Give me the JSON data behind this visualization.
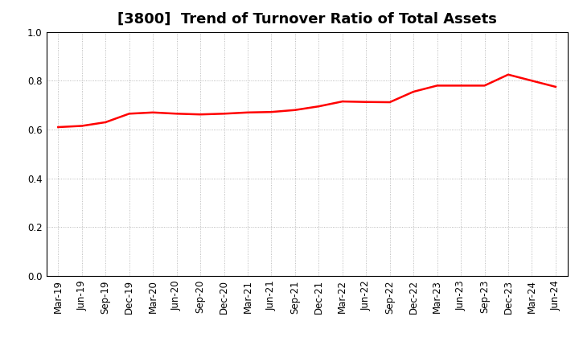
{
  "title": "[3800]  Trend of Turnover Ratio of Total Assets",
  "x_labels": [
    "Mar-19",
    "Jun-19",
    "Sep-19",
    "Dec-19",
    "Mar-20",
    "Jun-20",
    "Sep-20",
    "Dec-20",
    "Mar-21",
    "Jun-21",
    "Sep-21",
    "Dec-21",
    "Mar-22",
    "Jun-22",
    "Sep-22",
    "Dec-22",
    "Mar-23",
    "Jun-23",
    "Sep-23",
    "Dec-23",
    "Mar-24",
    "Jun-24"
  ],
  "y_values": [
    0.61,
    0.615,
    0.63,
    0.665,
    0.67,
    0.665,
    0.662,
    0.665,
    0.67,
    0.672,
    0.68,
    0.695,
    0.715,
    0.713,
    0.712,
    0.755,
    0.78,
    0.78,
    0.78,
    0.825,
    0.8,
    0.775
  ],
  "line_color": "#FF0000",
  "ylim": [
    0.0,
    1.0
  ],
  "yticks": [
    0.0,
    0.2,
    0.4,
    0.6,
    0.8,
    1.0
  ],
  "title_fontsize": 13,
  "tick_fontsize": 8.5,
  "background_color": "#ffffff",
  "grid_color": "#aaaaaa",
  "line_width": 1.8
}
